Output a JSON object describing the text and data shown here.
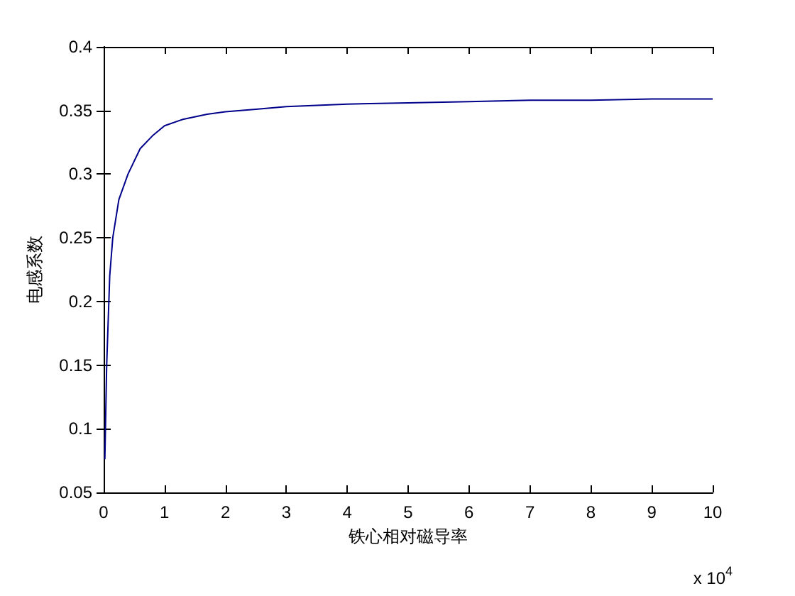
{
  "chart_data": {
    "type": "line",
    "xlabel": "铁心相对磁导率",
    "ylabel": "电感系数",
    "annotations": [
      "x 10$^{4}$"
    ],
    "x": [
      0.02,
      0.05,
      0.1,
      0.15,
      0.25,
      0.4,
      0.6,
      0.8,
      1.0,
      1.3,
      1.7,
      2,
      2.5,
      3,
      4,
      5,
      6,
      7,
      8,
      9,
      10
    ],
    "series": [
      {
        "color": "#00008b",
        "values": [
          0.076,
          0.15,
          0.22,
          0.25,
          0.28,
          0.3,
          0.32,
          0.33,
          0.338,
          0.343,
          0.347,
          0.349,
          0.351,
          0.353,
          0.355,
          0.356,
          0.357,
          0.358,
          0.358,
          0.359,
          0.359
        ]
      }
    ],
    "xlim": [
      0,
      10
    ],
    "xticks": [
      0,
      1,
      2,
      3,
      4,
      5,
      6,
      7,
      8,
      9,
      10
    ],
    "ylim": [
      0.05,
      0.4
    ],
    "yticks": [
      0.05,
      0.1,
      0.15,
      0.2,
      0.25,
      0.3,
      0.35,
      0.4
    ],
    "grid": false,
    "marker": "none",
    "line_style": "solid"
  }
}
